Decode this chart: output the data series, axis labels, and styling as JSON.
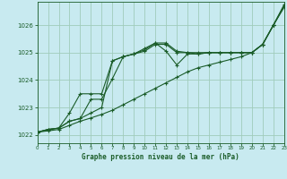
{
  "xlabel": "Graphe pression niveau de la mer (hPa)",
  "background_color": "#c8eaf0",
  "grid_color": "#a0ccbb",
  "line_color": "#1a5c28",
  "x_values": [
    0,
    1,
    2,
    3,
    4,
    5,
    6,
    7,
    8,
    9,
    10,
    11,
    12,
    13,
    14,
    15,
    16,
    17,
    18,
    19,
    20,
    21,
    22,
    23
  ],
  "series1": [
    1022.1,
    1022.2,
    1022.25,
    1022.5,
    1022.6,
    1022.8,
    1023.0,
    1024.7,
    1024.85,
    1024.95,
    1025.05,
    1025.3,
    1025.3,
    1025.0,
    1025.0,
    1025.0,
    1025.0,
    1025.0,
    1025.0,
    1025.0,
    1025.0,
    1025.3,
    1026.0,
    1026.7
  ],
  "series2": [
    1022.1,
    1022.2,
    1022.25,
    1022.5,
    1022.6,
    1023.3,
    1023.3,
    1024.05,
    1024.85,
    1024.95,
    1025.1,
    1025.35,
    1025.05,
    1024.55,
    1024.95,
    1024.95,
    1025.0,
    1025.0,
    1025.0,
    1025.0,
    1025.0,
    1025.3,
    1026.0,
    1026.75
  ],
  "series3": [
    1022.1,
    1022.2,
    1022.25,
    1022.8,
    1023.5,
    1023.5,
    1023.5,
    1024.7,
    1024.85,
    1024.95,
    1025.15,
    1025.35,
    1025.35,
    1025.05,
    1025.0,
    1024.95,
    1025.0,
    1025.0,
    1025.0,
    1025.0,
    1025.0,
    1025.3,
    1026.0,
    1026.65
  ],
  "series4": [
    1022.1,
    1022.15,
    1022.2,
    1022.35,
    1022.5,
    1022.62,
    1022.75,
    1022.9,
    1023.1,
    1023.3,
    1023.5,
    1023.7,
    1023.9,
    1024.1,
    1024.3,
    1024.45,
    1024.55,
    1024.65,
    1024.75,
    1024.85,
    1025.0,
    1025.3,
    1026.0,
    1026.7
  ],
  "ylim": [
    1021.7,
    1026.85
  ],
  "yticks": [
    1022,
    1023,
    1024,
    1025,
    1026
  ],
  "xlim": [
    0,
    23
  ],
  "figsize": [
    3.2,
    2.0
  ],
  "dpi": 100
}
